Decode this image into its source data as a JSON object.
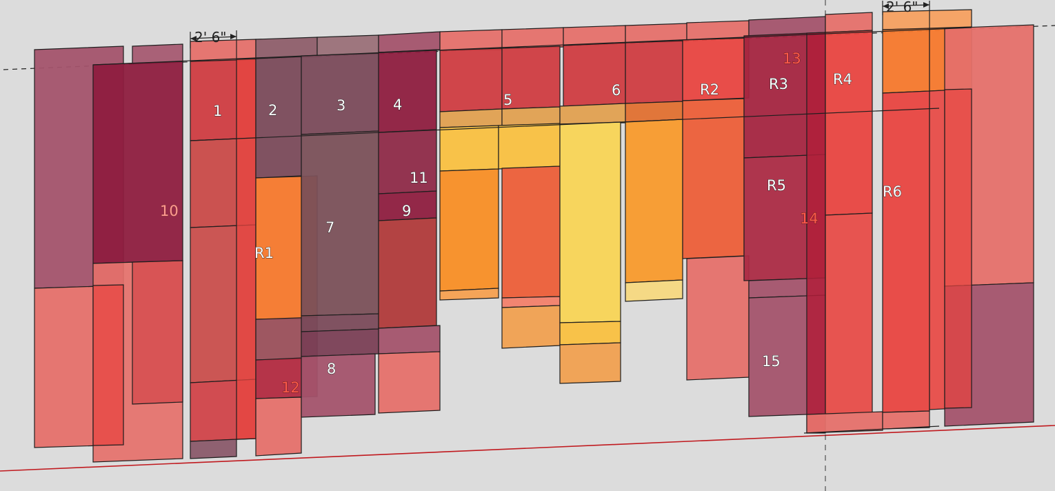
{
  "labels": {
    "l1": "1",
    "l2": "2",
    "l3": "3",
    "l4": "4",
    "l5": "5",
    "l6": "6",
    "l7": "7",
    "l8": "8",
    "l9": "9",
    "l10": "10",
    "l11": "11",
    "l12": "12",
    "l13": "13",
    "l14": "14",
    "l15": "15",
    "r1": "R1",
    "r2": "R2",
    "r3": "R3",
    "r4": "R4",
    "r5": "R5",
    "r6": "R6"
  },
  "dimensions": {
    "left": "2' 6\"",
    "right": "2' 6\""
  },
  "colors": {
    "pink": "#e5706a",
    "mauve": "#a3536b",
    "crimson": "#8e1d3f",
    "red": "#cf3c41",
    "bright_red": "#e84540",
    "grey_mauve": "#7a4a5a",
    "orange": "#f5782c",
    "amber": "#f89a2c",
    "yellow": "#f7d45a",
    "light_orange": "#f0a050",
    "ground_line": "#c0191e"
  }
}
